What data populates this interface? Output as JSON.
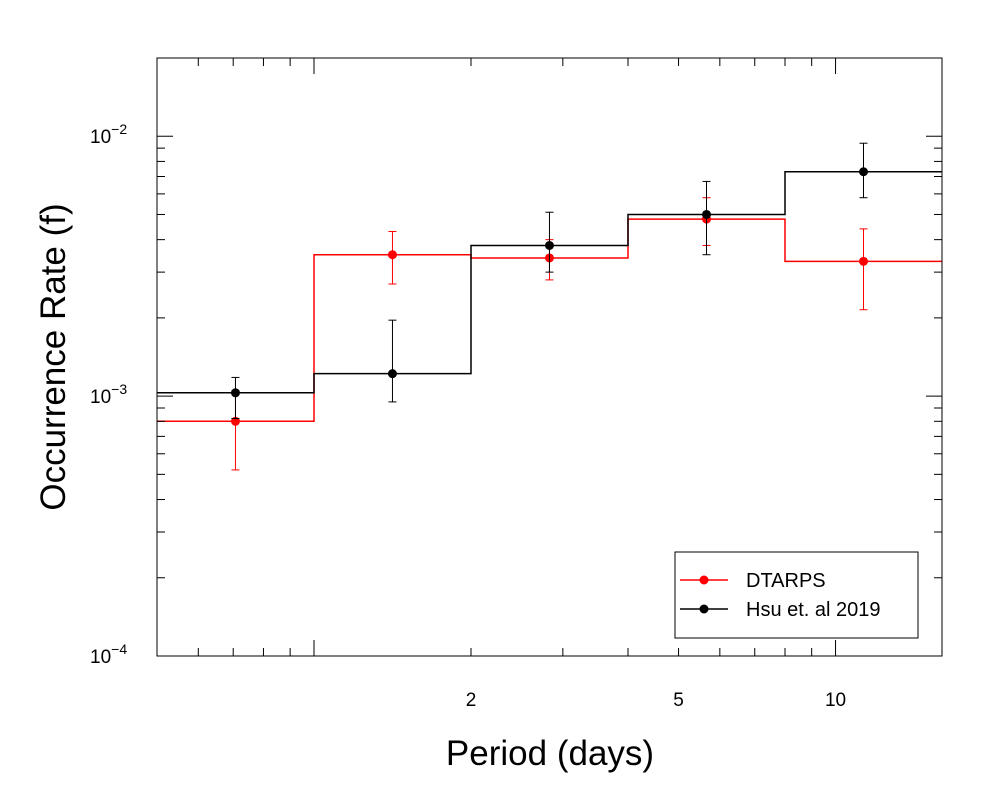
{
  "chart_data": {
    "type": "line",
    "xlabel": "Period (days)",
    "ylabel": "Occurrence Rate (f)",
    "xscale": "log",
    "yscale": "log",
    "xlim": [
      0.5,
      16
    ],
    "ylim": [
      0.0001,
      0.02
    ],
    "bin_edges": [
      0.5,
      1.0,
      2.0,
      4.0,
      8.0,
      16.0
    ],
    "x_ticks": [
      {
        "value": 2,
        "label": "2"
      },
      {
        "value": 5,
        "label": "5"
      },
      {
        "value": 10,
        "label": "10"
      }
    ],
    "y_ticks": [
      {
        "value": 0.01,
        "base": "10",
        "exp": "−2"
      },
      {
        "value": 0.001,
        "base": "10",
        "exp": "−3"
      },
      {
        "value": 0.0001,
        "base": "10",
        "exp": "−4"
      }
    ],
    "grid": false,
    "legend_position": "bottom-right",
    "series": [
      {
        "name": "DTARPS",
        "color": "#ff0000",
        "x": [
          0.707,
          1.414,
          2.828,
          5.657,
          11.314
        ],
        "values": [
          0.0008,
          0.0035,
          0.0034,
          0.0048,
          0.0033
        ],
        "err_low": [
          0.00052,
          0.0027,
          0.0028,
          0.0038,
          0.00215
        ],
        "err_high": [
          0.00105,
          0.0043,
          0.004,
          0.0058,
          0.0044
        ]
      },
      {
        "name": "Hsu et. al 2019",
        "color": "#000000",
        "x": [
          0.707,
          1.414,
          2.828,
          5.657,
          11.314
        ],
        "values": [
          0.00103,
          0.00122,
          0.0038,
          0.005,
          0.0073
        ],
        "err_low": [
          0.00082,
          0.00095,
          0.003,
          0.0035,
          0.0058
        ],
        "err_high": [
          0.00118,
          0.00196,
          0.0051,
          0.0067,
          0.0094
        ]
      }
    ]
  }
}
